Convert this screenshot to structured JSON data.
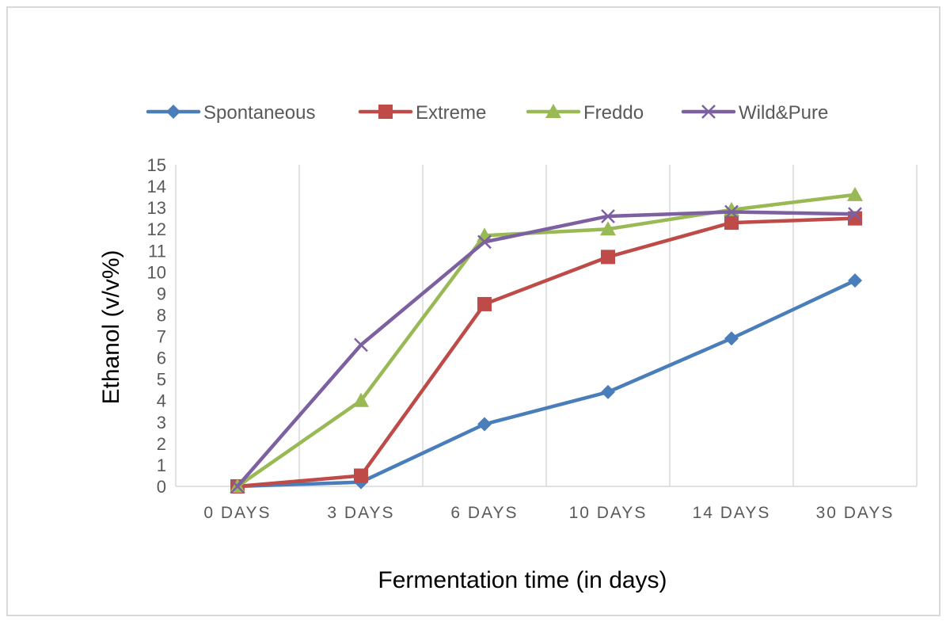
{
  "chart_data": {
    "type": "line",
    "title": "",
    "xlabel": "Fermentation time (in days)",
    "ylabel": "Ethanol (v/v%)",
    "categories": [
      "0 DAYS",
      "3 DAYS",
      "6 DAYS",
      "10 DAYS",
      "14 DAYS",
      "30 DAYS"
    ],
    "ylim": [
      0,
      15
    ],
    "yticks": [
      "0",
      "1",
      "2",
      "3",
      "4",
      "5",
      "6",
      "7",
      "8",
      "9",
      "10",
      "11",
      "12",
      "13",
      "14",
      "15"
    ],
    "grid": "vertical",
    "legend_position": "top",
    "series": [
      {
        "name": "Spontaneous",
        "color": "#4a7ebb",
        "marker": "diamond",
        "values": [
          0,
          0.2,
          2.9,
          4.4,
          6.9,
          9.6
        ]
      },
      {
        "name": "Extreme",
        "color": "#be4b48",
        "marker": "square",
        "values": [
          0,
          0.5,
          8.5,
          10.7,
          12.3,
          12.5
        ]
      },
      {
        "name": "Freddo",
        "color": "#98b954",
        "marker": "triangle",
        "values": [
          0,
          4.0,
          11.7,
          12.0,
          12.9,
          13.6
        ]
      },
      {
        "name": "Wild&Pure",
        "color": "#7d60a0",
        "marker": "x",
        "values": [
          0,
          6.6,
          11.4,
          12.6,
          12.8,
          12.7
        ]
      }
    ]
  }
}
